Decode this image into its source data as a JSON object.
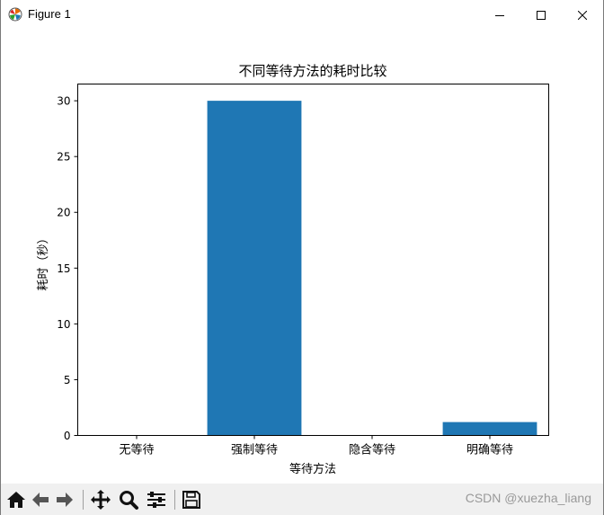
{
  "window": {
    "title": "Figure 1"
  },
  "icons": {
    "app": "matplotlib-icon",
    "minimize": "minimize-icon",
    "maximize": "maximize-icon",
    "close": "close-icon"
  },
  "toolbar": {
    "tools": [
      "home-icon",
      "back-arrow-icon",
      "forward-arrow-icon",
      "pan-icon",
      "zoom-icon",
      "configure-subplots-icon",
      "save-icon"
    ],
    "watermark": "CSDN @xuezha_liang"
  },
  "chart_data": {
    "type": "bar",
    "title": "不同等待方法的耗时比较",
    "xlabel": "等待方法",
    "ylabel": "耗时（秒）",
    "categories": [
      "无等待",
      "强制等待",
      "隐含等待",
      "明确等待"
    ],
    "values": [
      0,
      30,
      0,
      1.2
    ],
    "ylim": [
      0,
      31.5
    ],
    "yticks": [
      0,
      5,
      10,
      15,
      20,
      25,
      30
    ],
    "bar_color": "#1f77b4",
    "grid": false,
    "legend": "none"
  }
}
